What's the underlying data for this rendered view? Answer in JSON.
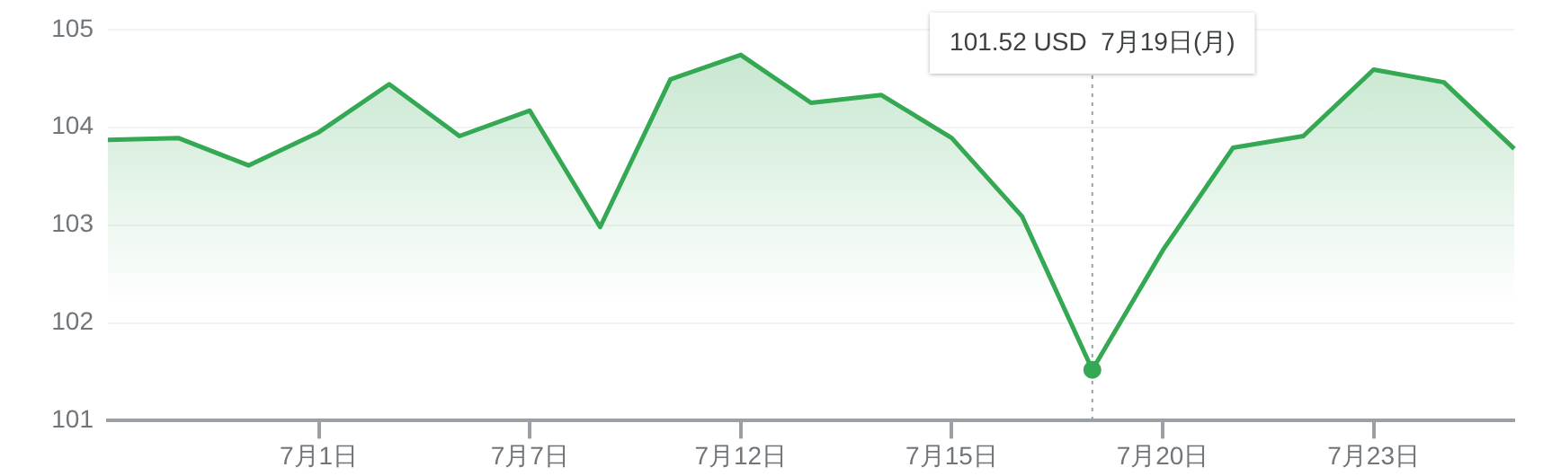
{
  "chart_data": {
    "type": "area",
    "categories": [
      null,
      null,
      null,
      "7月1日",
      null,
      null,
      "7月7日",
      null,
      null,
      "7月12日",
      null,
      null,
      "7月15日",
      null,
      null,
      "7月20日",
      null,
      null,
      "7月23日",
      null,
      null
    ],
    "series": [
      {
        "color": "#34a853",
        "values": [
          103.87,
          103.89,
          103.61,
          103.95,
          104.44,
          103.91,
          104.17,
          102.98,
          104.49,
          104.74,
          104.25,
          104.33,
          103.89,
          103.09,
          101.52,
          102.74,
          103.79,
          103.91,
          104.59,
          104.46,
          103.78
        ]
      }
    ],
    "ylim": [
      101,
      105
    ],
    "yticks": [
      101,
      102,
      103,
      104,
      105
    ],
    "grid": "y",
    "legend": false,
    "annotations": [
      "101.52 USD  7月19日(月)"
    ]
  }
}
